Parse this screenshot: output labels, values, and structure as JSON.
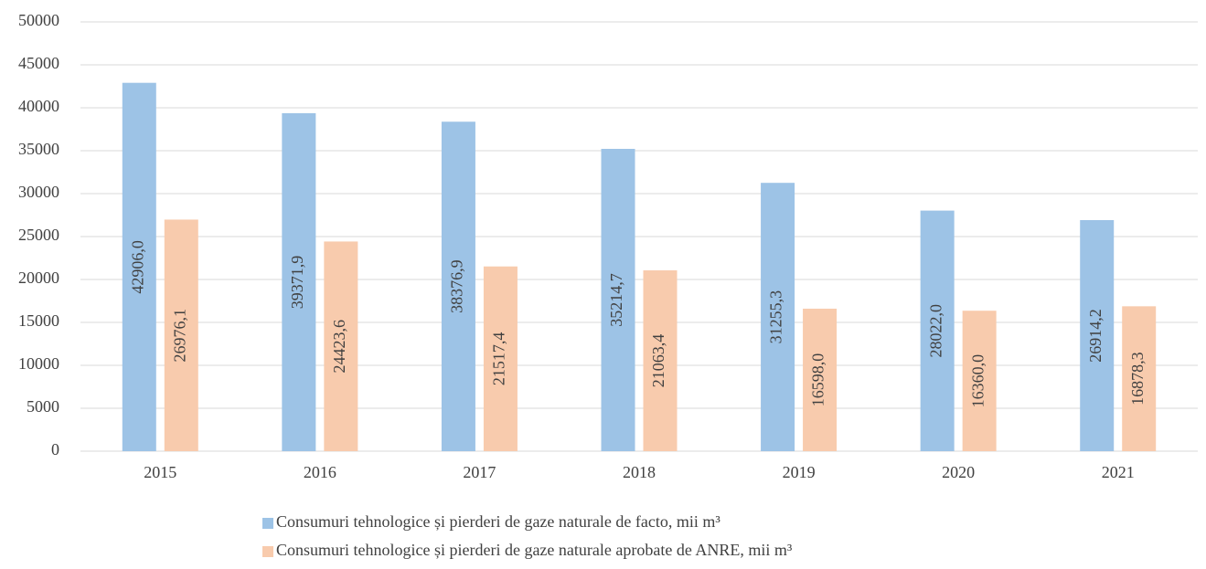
{
  "chart_data": {
    "type": "bar",
    "categories": [
      "2015",
      "2016",
      "2017",
      "2018",
      "2019",
      "2020",
      "2021"
    ],
    "series": [
      {
        "name": "Consumuri tehnologice și pierderi de gaze naturale de facto, mii m³",
        "color": "#9dc3e6",
        "values": [
          42906.0,
          39371.9,
          38376.9,
          35214.7,
          31255.3,
          28022.0,
          26914.2
        ],
        "value_labels": [
          "42906,0",
          "39371,9",
          "38376,9",
          "35214,7",
          "31255,3",
          "28022,0",
          "26914,2"
        ]
      },
      {
        "name": "Consumuri tehnologice și pierderi de gaze naturale aprobate de ANRE, mii m³",
        "color": "#f8cbad",
        "values": [
          26976.1,
          24423.6,
          21517.4,
          21063.4,
          16598.0,
          16360.0,
          16878.3
        ],
        "value_labels": [
          "26976,1",
          "24423,6",
          "21517,4",
          "21063,4",
          "16598,0",
          "16360,0",
          "16878,3"
        ]
      }
    ],
    "ylim": [
      0,
      50000
    ],
    "yticks": [
      0,
      5000,
      10000,
      15000,
      20000,
      25000,
      30000,
      35000,
      40000,
      45000,
      50000
    ],
    "grid": true,
    "legend": "bottom"
  }
}
